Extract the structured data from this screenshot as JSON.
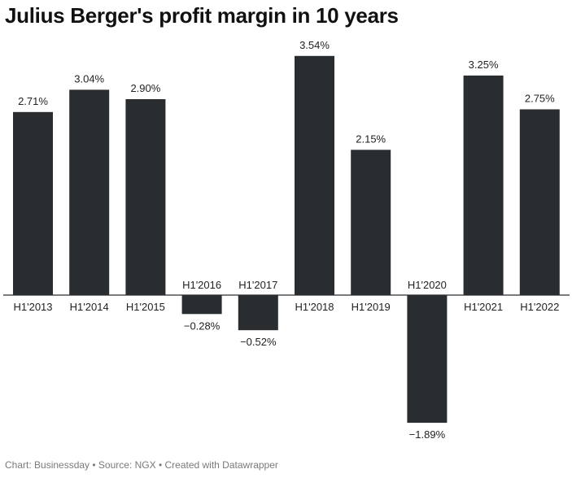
{
  "title": "Julius Berger's profit margin in 10 years",
  "footer": "Chart: Businessday • Source: NGX • Created with Datawrapper",
  "colors": {
    "bar": "#2a2d30",
    "text": "#222222",
    "footer": "#7a7a7a"
  },
  "chart_data": {
    "type": "bar",
    "title": "Julius Berger's profit margin in 10 years",
    "xlabel": "",
    "ylabel": "",
    "categories": [
      "H1'2013",
      "H1'2014",
      "H1'2015",
      "H1'2016",
      "H1'2017",
      "H1'2018",
      "H1'2019",
      "H1'2020",
      "H1'2021",
      "H1'2022"
    ],
    "values": [
      2.71,
      3.04,
      2.9,
      -0.28,
      -0.52,
      3.54,
      2.15,
      -1.89,
      3.25,
      2.75
    ],
    "value_labels": [
      "2.71%",
      "3.04%",
      "2.90%",
      "−0.28%",
      "−0.52%",
      "3.54%",
      "2.15%",
      "−1.89%",
      "3.25%",
      "2.75%"
    ],
    "unit": "%",
    "ylim": [
      -1.89,
      3.54
    ],
    "grid": false
  }
}
